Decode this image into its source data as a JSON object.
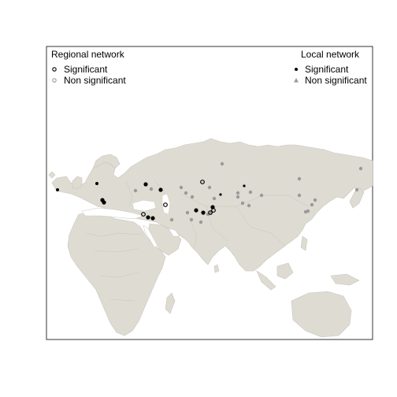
{
  "legend_regional": {
    "title": "Regional network",
    "items": [
      {
        "label": "Significant",
        "symbol": "open-circle",
        "color": "#000000"
      },
      {
        "label": "Non significant",
        "symbol": "open-circle",
        "color": "#9a9a9a"
      }
    ]
  },
  "legend_local": {
    "title": "Local network",
    "items": [
      {
        "label": "Significant",
        "symbol": "filled-circle",
        "color": "#000000"
      },
      {
        "label": "Non significant",
        "symbol": "filled-triangle",
        "color": "#9a9a9a"
      }
    ]
  },
  "colors": {
    "land": "#dedcd2",
    "borders": "#c9c6bc",
    "sea": "#ffffff",
    "significant": "#000000",
    "non_significant": "#9a9a9a"
  }
}
